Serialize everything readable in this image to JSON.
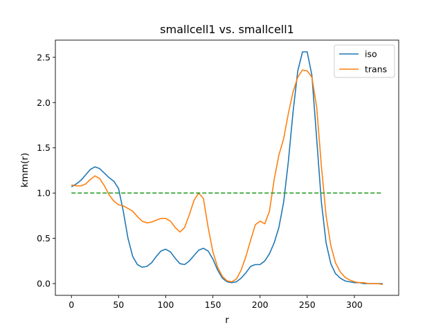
{
  "chart_data": {
    "type": "line",
    "title": "smallcell1 vs. smallcell1",
    "xlabel": "r",
    "ylabel": "kmm(r)",
    "xlim": [
      -17,
      347
    ],
    "ylim": [
      -0.13,
      2.69
    ],
    "xticks": [
      0,
      50,
      100,
      150,
      200,
      250,
      300
    ],
    "yticks": [
      0.0,
      0.5,
      1.0,
      1.5,
      2.0,
      2.5
    ],
    "xtick_labels": [
      "0",
      "50",
      "100",
      "150",
      "200",
      "250",
      "300"
    ],
    "ytick_labels": [
      "0.0",
      "0.5",
      "1.0",
      "1.5",
      "2.0",
      "2.5"
    ],
    "grid": false,
    "legend_position": "top-right",
    "series": [
      {
        "name": "iso",
        "color": "#1f77b4",
        "style": "solid",
        "x": [
          0,
          5,
          10,
          15,
          20,
          25,
          30,
          35,
          40,
          45,
          50,
          55,
          60,
          65,
          70,
          75,
          80,
          85,
          90,
          95,
          100,
          105,
          110,
          115,
          120,
          125,
          130,
          135,
          140,
          145,
          150,
          155,
          160,
          165,
          170,
          175,
          180,
          185,
          190,
          195,
          200,
          205,
          210,
          215,
          220,
          225,
          230,
          235,
          240,
          245,
          250,
          255,
          260,
          265,
          270,
          275,
          280,
          285,
          290,
          295,
          300,
          305,
          310,
          315,
          320,
          325,
          330
        ],
        "y": [
          1.07,
          1.1,
          1.14,
          1.2,
          1.26,
          1.29,
          1.27,
          1.22,
          1.17,
          1.13,
          1.05,
          0.8,
          0.5,
          0.3,
          0.21,
          0.18,
          0.19,
          0.23,
          0.3,
          0.36,
          0.38,
          0.35,
          0.28,
          0.22,
          0.21,
          0.25,
          0.31,
          0.37,
          0.39,
          0.36,
          0.27,
          0.15,
          0.06,
          0.02,
          0.01,
          0.02,
          0.06,
          0.12,
          0.19,
          0.21,
          0.21,
          0.25,
          0.33,
          0.45,
          0.62,
          0.9,
          1.35,
          1.9,
          2.35,
          2.56,
          2.56,
          2.3,
          1.6,
          0.9,
          0.45,
          0.22,
          0.11,
          0.06,
          0.03,
          0.02,
          0.01,
          0.01,
          0.0,
          0.0,
          0.0,
          0.0,
          0.0
        ]
      },
      {
        "name": "trans",
        "color": "#ff7f0e",
        "style": "solid",
        "x": [
          0,
          5,
          10,
          15,
          20,
          25,
          30,
          35,
          40,
          45,
          50,
          55,
          60,
          65,
          70,
          75,
          80,
          85,
          90,
          95,
          100,
          105,
          110,
          115,
          120,
          125,
          130,
          135,
          140,
          145,
          150,
          155,
          160,
          165,
          170,
          175,
          180,
          185,
          190,
          195,
          200,
          205,
          210,
          215,
          220,
          225,
          230,
          235,
          240,
          245,
          250,
          255,
          260,
          265,
          270,
          275,
          280,
          285,
          290,
          295,
          300,
          305,
          310,
          315,
          320,
          325,
          330
        ],
        "y": [
          1.09,
          1.08,
          1.08,
          1.1,
          1.15,
          1.19,
          1.16,
          1.08,
          0.98,
          0.91,
          0.87,
          0.86,
          0.83,
          0.8,
          0.74,
          0.69,
          0.67,
          0.68,
          0.7,
          0.72,
          0.72,
          0.69,
          0.62,
          0.57,
          0.62,
          0.76,
          0.92,
          1.0,
          0.94,
          0.62,
          0.35,
          0.18,
          0.08,
          0.03,
          0.02,
          0.05,
          0.15,
          0.3,
          0.48,
          0.65,
          0.69,
          0.66,
          0.8,
          1.15,
          1.42,
          1.6,
          1.88,
          2.12,
          2.28,
          2.36,
          2.35,
          2.28,
          1.95,
          1.3,
          0.75,
          0.42,
          0.23,
          0.13,
          0.07,
          0.04,
          0.02,
          0.01,
          0.01,
          0.0,
          0.0,
          0.0,
          -0.01
        ]
      },
      {
        "color": "#2ca02c",
        "style": "dashed",
        "x": [
          0,
          330
        ],
        "y": [
          1.0,
          1.0
        ]
      }
    ]
  }
}
